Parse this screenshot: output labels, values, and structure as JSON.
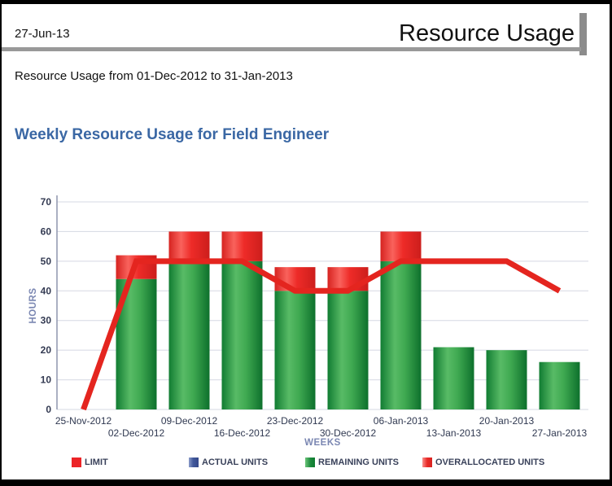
{
  "header": {
    "date": "27-Jun-13",
    "title": "Resource Usage"
  },
  "subtitle": "Resource Usage from 01-Dec-2012 to 31-Jan-2013",
  "section_title": "Weekly Resource Usage for Field Engineer",
  "chart_data": {
    "type": "bar+line",
    "title": "Weekly Resource Usage for Field Engineer",
    "xlabel": "WEEKS",
    "ylabel": "HOURS",
    "ylim": [
      0,
      70
    ],
    "ytick_step": 10,
    "grid": true,
    "legend_position": "bottom",
    "categories": [
      "25-Nov-2012",
      "02-Dec-2012",
      "09-Dec-2012",
      "16-Dec-2012",
      "23-Dec-2012",
      "30-Dec-2012",
      "06-Jan-2013",
      "13-Jan-2013",
      "20-Jan-2013",
      "27-Jan-2013"
    ],
    "series": [
      {
        "name": "LIMIT",
        "type": "line",
        "color": "#e4251f",
        "values": [
          0,
          50,
          50,
          50,
          40,
          40,
          50,
          50,
          50,
          40
        ]
      },
      {
        "name": "ACTUAL UNITS",
        "type": "bar",
        "color": "#44599a",
        "values": [
          0,
          0,
          0,
          0,
          0,
          0,
          0,
          0,
          0,
          0
        ]
      },
      {
        "name": "REMAINING UNITS",
        "type": "bar",
        "color": "#2e9e47",
        "values": [
          0,
          44,
          49,
          50,
          40,
          40,
          50,
          21,
          20,
          16
        ]
      },
      {
        "name": "OVERALLOCATED UNITS",
        "type": "bar",
        "color": "#ee2b28",
        "stack": "on-remaining",
        "values": [
          0,
          8,
          11,
          10,
          8,
          8,
          10,
          0,
          0,
          0
        ]
      }
    ]
  },
  "legend": [
    {
      "label": "LIMIT",
      "swatch": "solid-red"
    },
    {
      "label": "ACTUAL UNITS",
      "swatch": "gradient-blue"
    },
    {
      "label": "REMAINING UNITS",
      "swatch": "gradient-green"
    },
    {
      "label": "OVERALLOCATED UNITS",
      "swatch": "gradient-red"
    }
  ],
  "colors": {
    "accent_heading": "#3a67a4",
    "limit_line": "#e4251f",
    "bar_green": "#2e9e47",
    "bar_red": "#ee2b28",
    "bar_blue": "#44599a",
    "axis_title": "#7b87b2",
    "tick_label": "#333a52",
    "header_rule": "#999999"
  }
}
